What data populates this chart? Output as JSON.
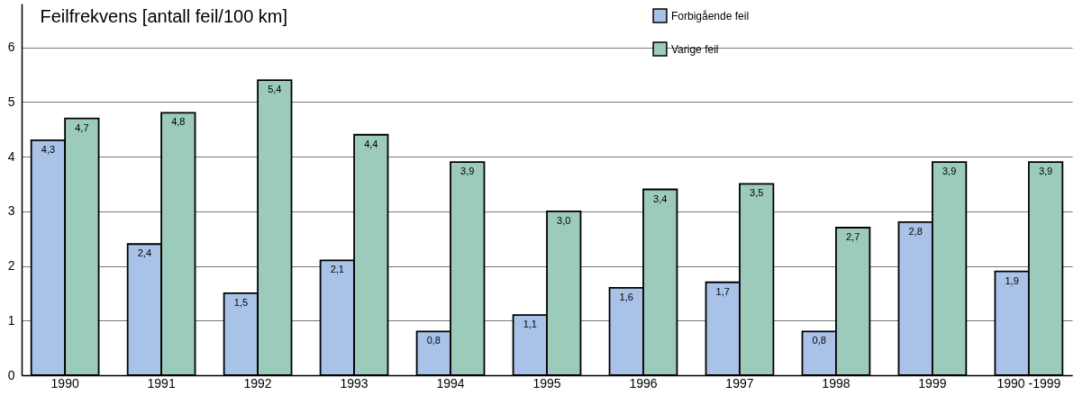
{
  "chart_data": {
    "type": "bar",
    "ylabel": "Feilfrekvens [antall feil/100 km]",
    "categories": [
      "1990",
      "1991",
      "1992",
      "1993",
      "1994",
      "1995",
      "1996",
      "1997",
      "1998",
      "1999",
      "1990 -1999"
    ],
    "series": [
      {
        "name": "Forbigående feil",
        "color": "#a9c2e8",
        "values": [
          4.3,
          2.4,
          1.5,
          2.1,
          0.8,
          1.1,
          1.6,
          1.7,
          0.8,
          2.8,
          1.9
        ],
        "value_labels": [
          "4,3",
          "2,4",
          "1,5",
          "2,1",
          "0,8",
          "1,1",
          "1,6",
          "1,7",
          "0,8",
          "2,8",
          "1,9"
        ]
      },
      {
        "name": "Varige feil",
        "color": "#9ccbbb",
        "values": [
          4.7,
          4.8,
          5.4,
          4.4,
          3.9,
          3.0,
          3.4,
          3.5,
          2.7,
          3.9,
          3.9
        ],
        "value_labels": [
          "4,7",
          "4,8",
          "5,4",
          "4,4",
          "3,9",
          "3,0",
          "3,4",
          "3,5",
          "2,7",
          "3,9",
          "3,9"
        ]
      }
    ],
    "ylim": [
      0,
      6.8
    ],
    "yticks": [
      0,
      1,
      2,
      3,
      4,
      5,
      6
    ],
    "grid": "y",
    "legend": "top"
  }
}
